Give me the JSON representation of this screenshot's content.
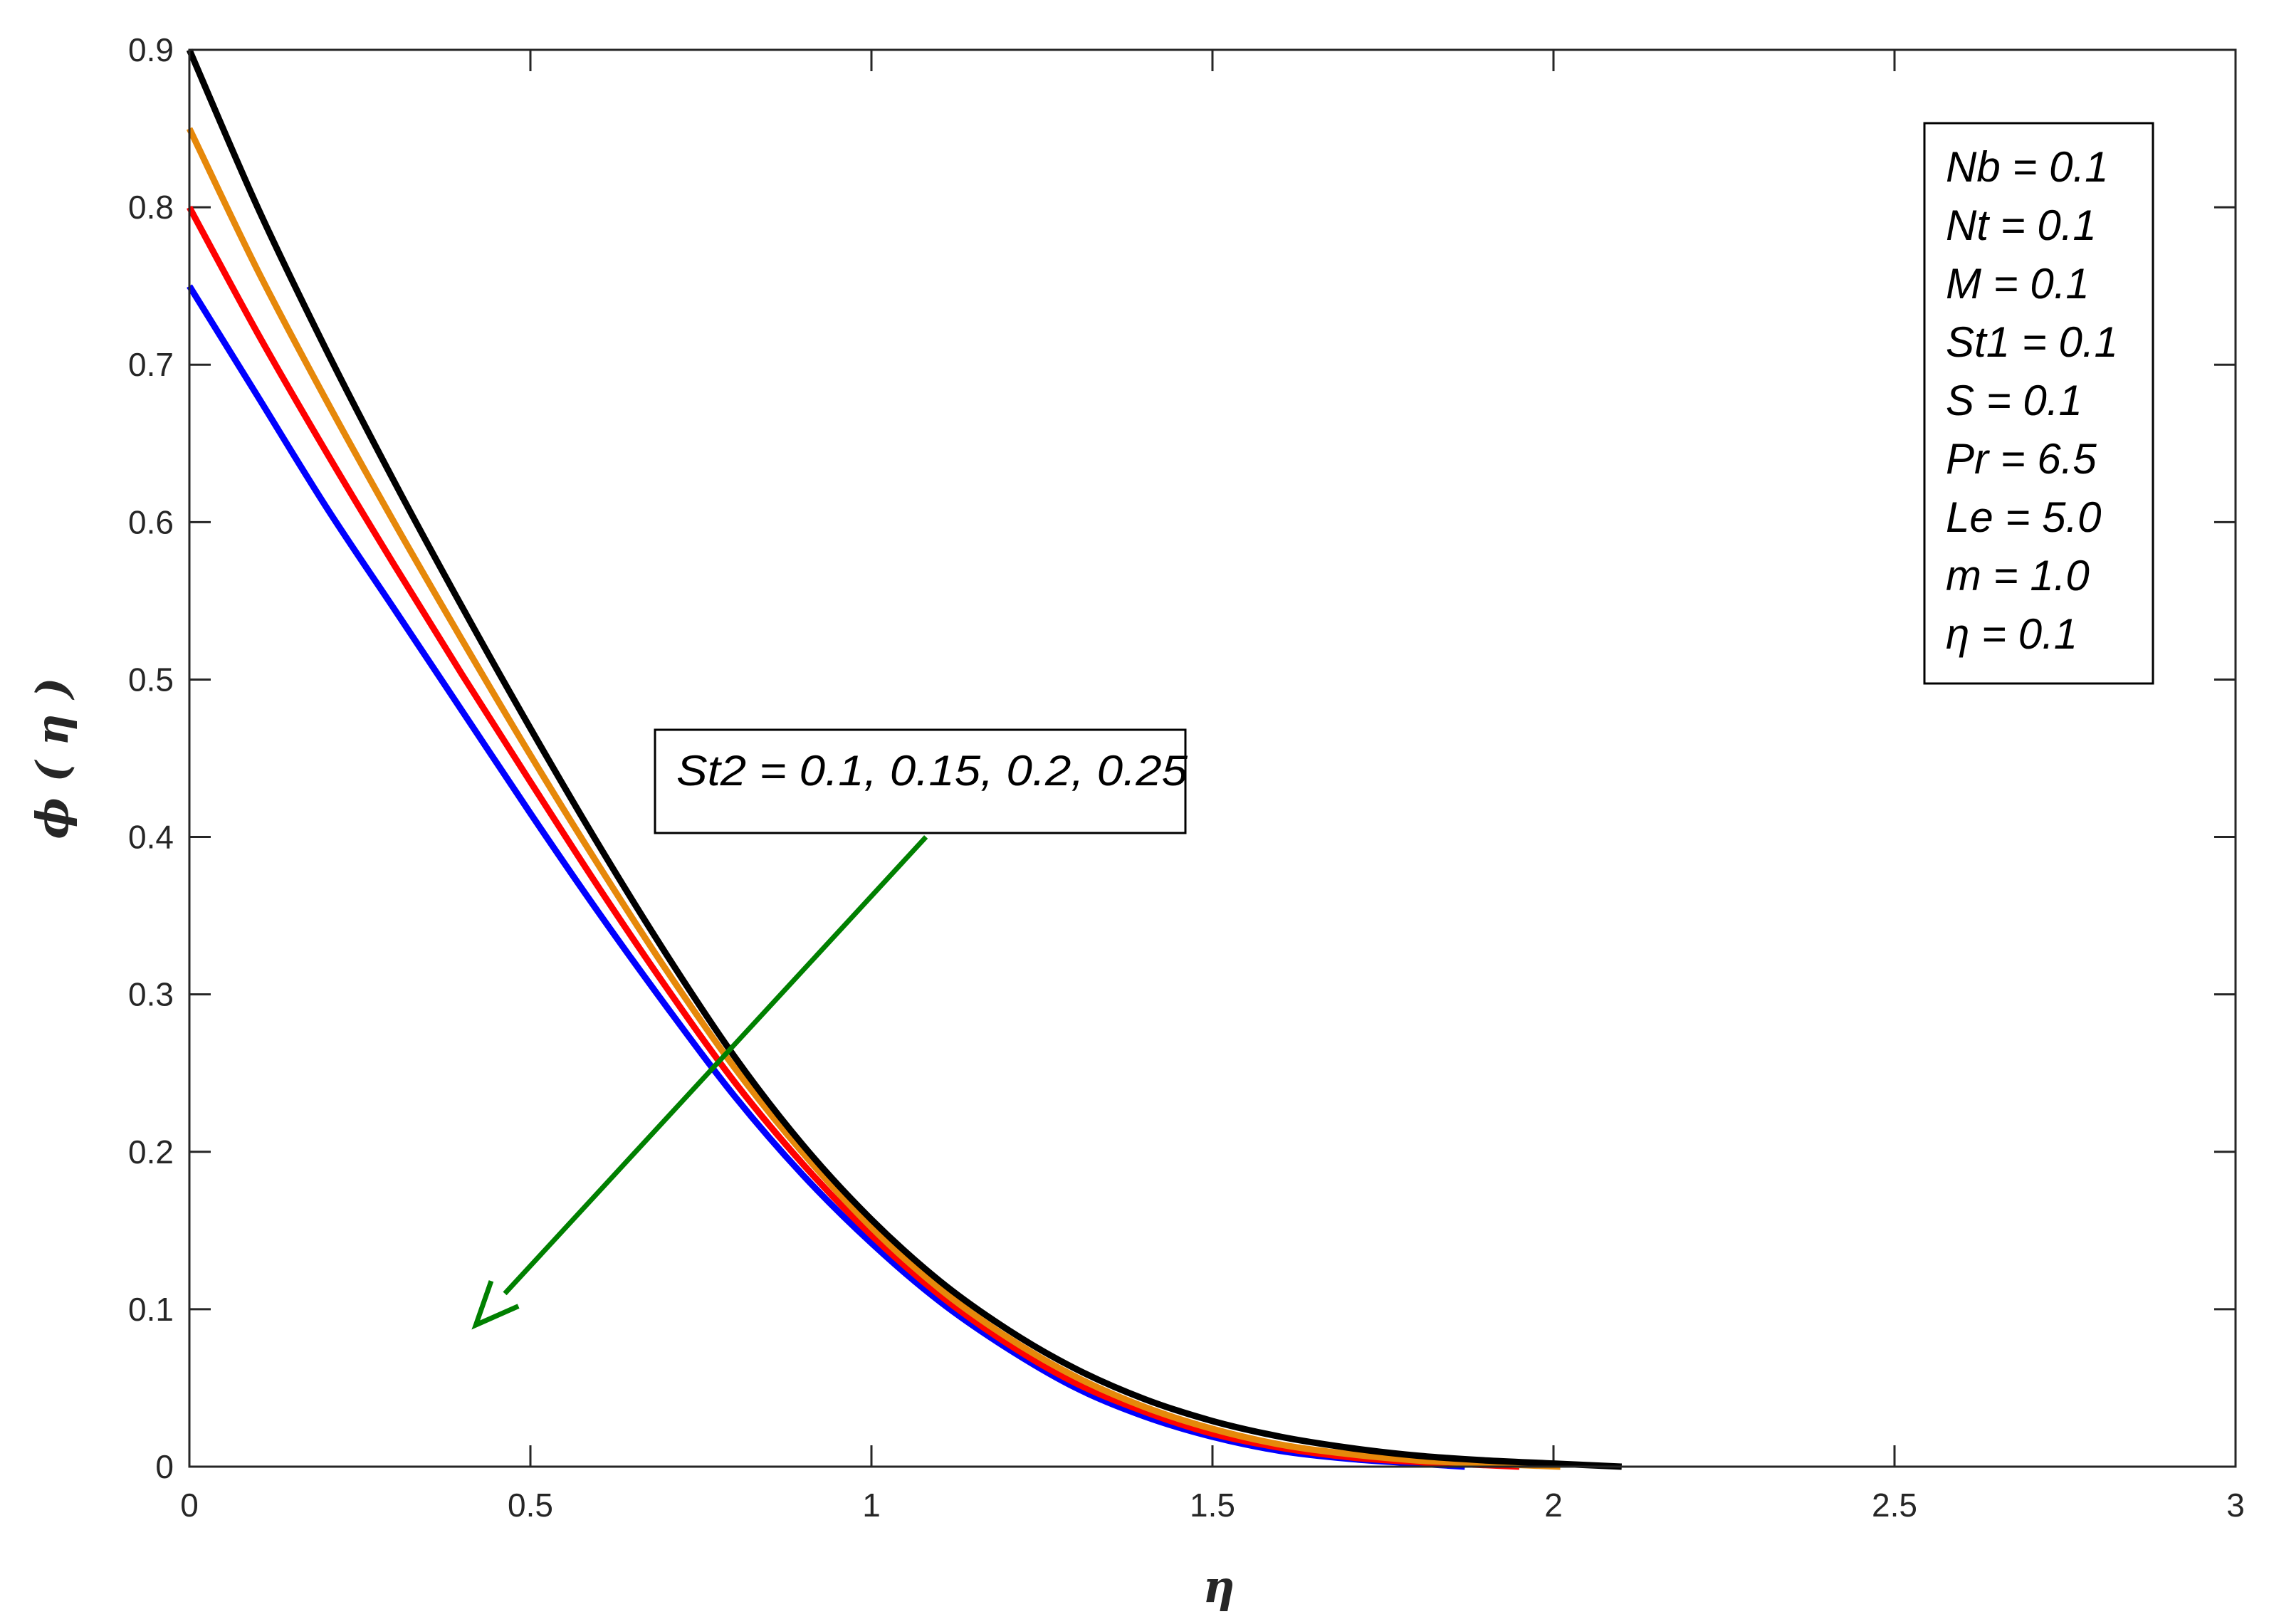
{
  "chart_data": {
    "type": "line",
    "xlabel": "η",
    "ylabel": "ϕ ( η )",
    "xlim": [
      0,
      3
    ],
    "ylim": [
      0,
      0.9
    ],
    "xticks": [
      "0",
      "0.5",
      "1",
      "1.5",
      "2",
      "2.5",
      "3"
    ],
    "yticks": [
      "0",
      "0.1",
      "0.2",
      "0.3",
      "0.4",
      "0.5",
      "0.6",
      "0.7",
      "0.8",
      "0.9"
    ],
    "grid": false,
    "series": [
      {
        "color": "#0000ff",
        "x": [
          0,
          0.1,
          0.2,
          0.3,
          0.4,
          0.5,
          0.6,
          0.7,
          0.8,
          0.9,
          1.0,
          1.1,
          1.2,
          1.3,
          1.4,
          1.5,
          1.6,
          1.7,
          1.8,
          1.87
        ],
        "y": [
          0.75,
          0.68,
          0.61,
          0.545,
          0.48,
          0.415,
          0.352,
          0.292,
          0.235,
          0.185,
          0.142,
          0.105,
          0.075,
          0.05,
          0.032,
          0.019,
          0.01,
          0.005,
          0.002,
          0.0
        ]
      },
      {
        "color": "#ff0000",
        "x": [
          0,
          0.1,
          0.2,
          0.3,
          0.4,
          0.5,
          0.6,
          0.7,
          0.8,
          0.9,
          1.0,
          1.1,
          1.2,
          1.3,
          1.4,
          1.5,
          1.6,
          1.7,
          1.8,
          1.9,
          1.95
        ],
        "y": [
          0.8,
          0.72,
          0.645,
          0.573,
          0.503,
          0.435,
          0.368,
          0.304,
          0.244,
          0.192,
          0.147,
          0.109,
          0.078,
          0.053,
          0.035,
          0.021,
          0.012,
          0.006,
          0.003,
          0.001,
          0.0
        ]
      },
      {
        "color": "#e6880a",
        "x": [
          0,
          0.1,
          0.2,
          0.3,
          0.4,
          0.5,
          0.6,
          0.7,
          0.8,
          0.9,
          1.0,
          1.1,
          1.2,
          1.3,
          1.4,
          1.5,
          1.6,
          1.7,
          1.8,
          1.9,
          2.01
        ],
        "y": [
          0.85,
          0.76,
          0.678,
          0.6,
          0.525,
          0.452,
          0.382,
          0.315,
          0.253,
          0.199,
          0.152,
          0.113,
          0.082,
          0.057,
          0.038,
          0.024,
          0.014,
          0.008,
          0.004,
          0.002,
          0.0
        ]
      },
      {
        "color": "#000000",
        "x": [
          0,
          0.1,
          0.2,
          0.3,
          0.4,
          0.5,
          0.6,
          0.7,
          0.8,
          0.9,
          1.0,
          1.1,
          1.2,
          1.3,
          1.4,
          1.5,
          1.6,
          1.7,
          1.8,
          1.9,
          2.0,
          2.1
        ],
        "y": [
          0.9,
          0.8,
          0.71,
          0.626,
          0.546,
          0.469,
          0.395,
          0.325,
          0.26,
          0.204,
          0.157,
          0.118,
          0.087,
          0.062,
          0.043,
          0.029,
          0.019,
          0.012,
          0.007,
          0.004,
          0.002,
          0.0
        ]
      }
    ],
    "annotations": {
      "param_box": [
        "Nb = 0.1",
        "Nt = 0.1",
        "M = 0.1",
        "St1 = 0.1",
        "S = 0.1",
        "Pr = 6.5",
        "Le = 5.0",
        "m = 1.0",
        "η = 0.1"
      ],
      "arrow_label": "St2 = 0.1, 0.15, 0.2, 0.25",
      "arrow_color": "#008000",
      "arrow_from": [
        1.08,
        0.4
      ],
      "arrow_to": [
        0.42,
        0.09
      ]
    }
  }
}
